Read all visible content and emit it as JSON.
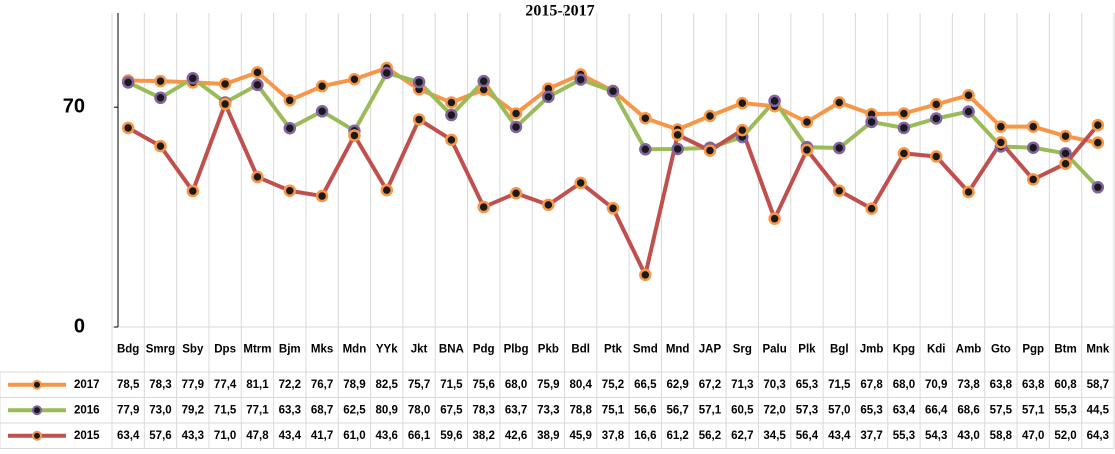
{
  "chart_data": {
    "type": "line",
    "title": "2015-2017",
    "categories": [
      "Bdg",
      "Smrg",
      "Sby",
      "Dps",
      "Mtrm",
      "Bjm",
      "Mks",
      "Mdn",
      "YYk",
      "Jkt",
      "BNA",
      "Pdg",
      "Plbg",
      "Pkb",
      "Bdl",
      "Ptk",
      "Smd",
      "Mnd",
      "JAP",
      "Srg",
      "Palu",
      "Plk",
      "Bgl",
      "Jmb",
      "Kpg",
      "Kdi",
      "Amb",
      "Gto",
      "Pgp",
      "Btm",
      "Mnk"
    ],
    "series": [
      {
        "name": "2017",
        "color": "#f79646",
        "marker_edge": "#f79646",
        "values": [
          78.5,
          78.3,
          77.9,
          77.4,
          81.1,
          72.2,
          76.7,
          78.9,
          82.5,
          75.7,
          71.5,
          75.6,
          68.0,
          75.9,
          80.4,
          75.2,
          66.5,
          62.9,
          67.2,
          71.3,
          70.3,
          65.3,
          71.5,
          67.8,
          68.0,
          70.9,
          73.8,
          63.8,
          63.8,
          60.8,
          58.7
        ],
        "value_labels": [
          "78,5",
          "78,3",
          "77,9",
          "77,4",
          "81,1",
          "72,2",
          "76,7",
          "78,9",
          "82,5",
          "75,7",
          "71,5",
          "75,6",
          "68,0",
          "75,9",
          "80,4",
          "75,2",
          "66,5",
          "62,9",
          "67,2",
          "71,3",
          "70,3",
          "65,3",
          "71,5",
          "67,8",
          "68,0",
          "70,9",
          "73,8",
          "63,8",
          "63,8",
          "60,8",
          "58,7"
        ]
      },
      {
        "name": "2016",
        "color": "#9bbb59",
        "marker_edge": "#8064a2",
        "values": [
          77.9,
          73.0,
          79.2,
          71.5,
          77.1,
          63.3,
          68.7,
          62.5,
          80.9,
          78.0,
          67.5,
          78.3,
          63.7,
          73.3,
          78.8,
          75.1,
          56.6,
          56.7,
          57.1,
          60.5,
          72.0,
          57.3,
          57.0,
          65.3,
          63.4,
          66.4,
          68.6,
          57.5,
          57.1,
          55.3,
          44.5
        ],
        "value_labels": [
          "77,9",
          "73,0",
          "79,2",
          "71,5",
          "77,1",
          "63,3",
          "68,7",
          "62,5",
          "80,9",
          "78,0",
          "67,5",
          "78,3",
          "63,7",
          "73,3",
          "78,8",
          "75,1",
          "56,6",
          "56,7",
          "57,1",
          "60,5",
          "72,0",
          "57,3",
          "57,0",
          "65,3",
          "63,4",
          "66,4",
          "68,6",
          "57,5",
          "57,1",
          "55,3",
          "44,5"
        ]
      },
      {
        "name": "2015",
        "color": "#c0504d",
        "marker_edge": "#f79646",
        "values": [
          63.4,
          57.6,
          43.3,
          71.0,
          47.8,
          43.4,
          41.7,
          61.0,
          43.6,
          66.1,
          59.6,
          38.2,
          42.6,
          38.9,
          45.9,
          37.8,
          16.6,
          61.2,
          56.2,
          62.7,
          34.5,
          56.4,
          43.4,
          37.7,
          55.3,
          54.3,
          43.0,
          58.8,
          47.0,
          52.0,
          64.3
        ],
        "value_labels": [
          "63,4",
          "57,6",
          "43,3",
          "71,0",
          "47,8",
          "43,4",
          "41,7",
          "61,0",
          "43,6",
          "66,1",
          "59,6",
          "38,2",
          "42,6",
          "38,9",
          "45,9",
          "37,8",
          "16,6",
          "61,2",
          "56,2",
          "62,7",
          "34,5",
          "56,4",
          "43,4",
          "37,7",
          "55,3",
          "54,3",
          "43,0",
          "58,8",
          "47,0",
          "52,0",
          "64,3"
        ]
      }
    ],
    "ylim": [
      0,
      100
    ],
    "yticks": [
      0,
      70
    ],
    "grid": true
  }
}
